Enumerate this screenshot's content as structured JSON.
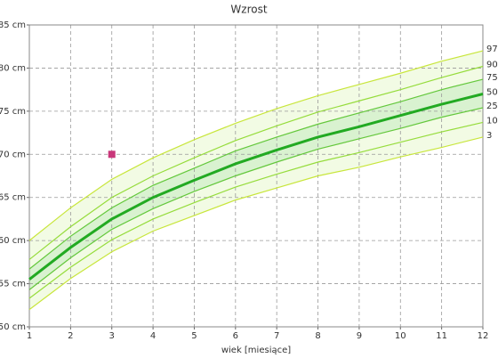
{
  "chart_data": {
    "type": "line",
    "title": "Wzrost",
    "x_label": "wiek [miesiące]",
    "x": [
      1,
      2,
      3,
      4,
      5,
      6,
      7,
      8,
      9,
      10,
      11,
      12
    ],
    "xlim": [
      1,
      12
    ],
    "xticks": [
      1,
      2,
      3,
      4,
      5,
      6,
      7,
      8,
      9,
      10,
      11,
      12
    ],
    "ylim": [
      50,
      85
    ],
    "yticks": [
      {
        "value": 50,
        "label": "50 cm"
      },
      {
        "value": 55,
        "label": "55 cm"
      },
      {
        "value": 60,
        "label": "60 cm"
      },
      {
        "value": 65,
        "label": "65 cm"
      },
      {
        "value": 70,
        "label": "70 cm"
      },
      {
        "value": 75,
        "label": "75 cm"
      },
      {
        "value": 80,
        "label": "80 cm"
      },
      {
        "value": 85,
        "label": "85 cm"
      }
    ],
    "grid": true,
    "series": [
      {
        "name": "97",
        "color": "#c8e63c",
        "values": [
          60,
          63.8,
          67.1,
          69.6,
          71.7,
          73.6,
          75.3,
          76.8,
          78.1,
          79.4,
          80.8,
          82
        ]
      },
      {
        "name": "90",
        "color": "#96dc3c",
        "values": [
          57.8,
          61.6,
          65,
          67.5,
          69.6,
          71.6,
          73.3,
          74.9,
          76.2,
          77.5,
          78.9,
          80.2
        ]
      },
      {
        "name": "75",
        "color": "#64c83c",
        "values": [
          56.7,
          60.5,
          63.8,
          66.4,
          68.4,
          70.4,
          72,
          73.5,
          74.8,
          76.1,
          77.5,
          78.7
        ]
      },
      {
        "name": "50",
        "color": "#22aa22",
        "values": [
          55.5,
          59.2,
          62.5,
          65,
          67,
          68.9,
          70.5,
          72,
          73.2,
          74.5,
          75.8,
          77
        ]
      },
      {
        "name": "25",
        "color": "#64c83c",
        "values": [
          54.3,
          58,
          61.3,
          63.7,
          65.7,
          67.5,
          69.1,
          70.6,
          71.8,
          73,
          74.3,
          75.4
        ]
      },
      {
        "name": "10",
        "color": "#96dc3c",
        "values": [
          53.3,
          56.9,
          60.1,
          62.5,
          64.4,
          66.2,
          67.7,
          69.1,
          70.2,
          71.4,
          72.6,
          73.7
        ]
      },
      {
        "name": "3",
        "color": "#c8e63c",
        "values": [
          52,
          55.6,
          58.7,
          61.1,
          62.9,
          64.7,
          66.1,
          67.5,
          68.5,
          69.7,
          70.8,
          72
        ]
      }
    ],
    "points": [
      {
        "x": 3,
        "y": 70,
        "color": "#c8377a"
      }
    ]
  }
}
